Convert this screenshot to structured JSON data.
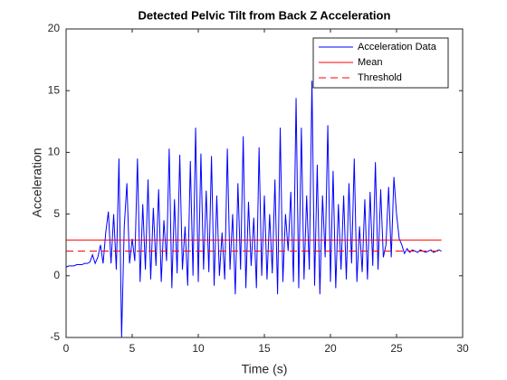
{
  "chart_data": {
    "type": "line",
    "title": "Detected Pelvic Tilt from Back Z Acceleration",
    "xlabel": "Time (s)",
    "ylabel": "Acceleration",
    "xlim": [
      0,
      30
    ],
    "xticks": [
      0,
      5,
      10,
      15,
      20,
      25,
      30
    ],
    "ylim": [
      -5,
      20
    ],
    "yticks": [
      -5,
      0,
      5,
      10,
      15,
      20
    ],
    "grid": false,
    "legend": "northeast",
    "series": [
      {
        "name": "Acceleration Data",
        "color": "#0000ff",
        "dash": "solid",
        "x": [
          0,
          0.2,
          0.4,
          0.6,
          0.8,
          1,
          1.2,
          1.4,
          1.6,
          1.8,
          2,
          2.2,
          2.4,
          2.6,
          2.8,
          3,
          3.2,
          3.4,
          3.6,
          3.8,
          4,
          4.2,
          4.4,
          4.6,
          4.8,
          5,
          5.2,
          5.4,
          5.6,
          5.8,
          6,
          6.2,
          6.4,
          6.6,
          6.8,
          7,
          7.2,
          7.4,
          7.6,
          7.8,
          8,
          8.2,
          8.4,
          8.6,
          8.8,
          9,
          9.2,
          9.4,
          9.6,
          9.8,
          10,
          10.2,
          10.4,
          10.6,
          10.8,
          11,
          11.2,
          11.4,
          11.6,
          11.8,
          12,
          12.2,
          12.4,
          12.6,
          12.8,
          13,
          13.2,
          13.4,
          13.6,
          13.8,
          14,
          14.2,
          14.4,
          14.6,
          14.8,
          15,
          15.2,
          15.4,
          15.6,
          15.8,
          16,
          16.2,
          16.4,
          16.6,
          16.8,
          17,
          17.2,
          17.4,
          17.6,
          17.8,
          18,
          18.2,
          18.4,
          18.6,
          18.8,
          19,
          19.2,
          19.4,
          19.6,
          19.8,
          20,
          20.2,
          20.4,
          20.6,
          20.8,
          21,
          21.2,
          21.4,
          21.6,
          21.8,
          22,
          22.2,
          22.4,
          22.6,
          22.8,
          23,
          23.2,
          23.4,
          23.6,
          23.8,
          24,
          24.2,
          24.4,
          24.6,
          24.8,
          25,
          25.2,
          25.4,
          25.6,
          25.8,
          26,
          26.2,
          26.4,
          26.6,
          26.8,
          27,
          27.2,
          27.4,
          27.6,
          27.8,
          28,
          28.2,
          28.4
        ],
        "values": [
          0.7,
          0.8,
          0.8,
          0.8,
          0.9,
          0.9,
          0.9,
          1.0,
          1.0,
          1.1,
          1.7,
          1.0,
          1.5,
          2.5,
          1.0,
          3.5,
          5.2,
          1.0,
          5.0,
          0.5,
          9.5,
          -5.0,
          4.0,
          7.5,
          1.0,
          3.0,
          1.2,
          9.5,
          -0.5,
          5.8,
          0.5,
          7.8,
          -0.3,
          5.5,
          0.8,
          7.0,
          -0.5,
          4.5,
          1.2,
          10.3,
          -1.0,
          6.2,
          0.2,
          9.8,
          0.5,
          4.0,
          -0.8,
          9.3,
          0.0,
          12.0,
          -0.5,
          9.9,
          0.5,
          6.9,
          0.3,
          9.7,
          -0.8,
          6.5,
          0.0,
          3.5,
          -0.3,
          10.3,
          0.5,
          5.0,
          -1.5,
          7.5,
          0.5,
          11.3,
          -1.0,
          6.0,
          0.8,
          4.7,
          -1.0,
          10.4,
          0.0,
          6.5,
          -0.3,
          5.0,
          0.2,
          7.8,
          -1.5,
          12.0,
          -0.5,
          5.0,
          2.0,
          6.8,
          -0.5,
          14.4,
          -1.0,
          12.0,
          -0.3,
          6.5,
          0.5,
          15.8,
          -0.8,
          9.0,
          -1.5,
          6.5,
          1.5,
          12.2,
          -0.5,
          8.5,
          -1.0,
          5.8,
          0.5,
          6.5,
          -0.3,
          7.5,
          1.0,
          9.5,
          -0.5,
          4.0,
          0.3,
          6.2,
          -0.3,
          6.8,
          0.8,
          9.2,
          0.5,
          7.0,
          1.5,
          2.5,
          7.2,
          1.5,
          8.0,
          5.0,
          3.0,
          2.5,
          1.8,
          2.2,
          1.9,
          2.1,
          2.0,
          1.9,
          2.1,
          2.0,
          1.9,
          2.0,
          2.1,
          1.9,
          2.0,
          2.1,
          2.0
        ]
      },
      {
        "name": "Mean",
        "color": "#ff0000",
        "dash": "solid",
        "x": [
          0,
          28.4
        ],
        "values": [
          2.9,
          2.9
        ]
      },
      {
        "name": "Threshold",
        "color": "#ff0000",
        "dash": "dashed",
        "x": [
          0,
          28.4
        ],
        "values": [
          2.0,
          2.0
        ]
      }
    ]
  }
}
